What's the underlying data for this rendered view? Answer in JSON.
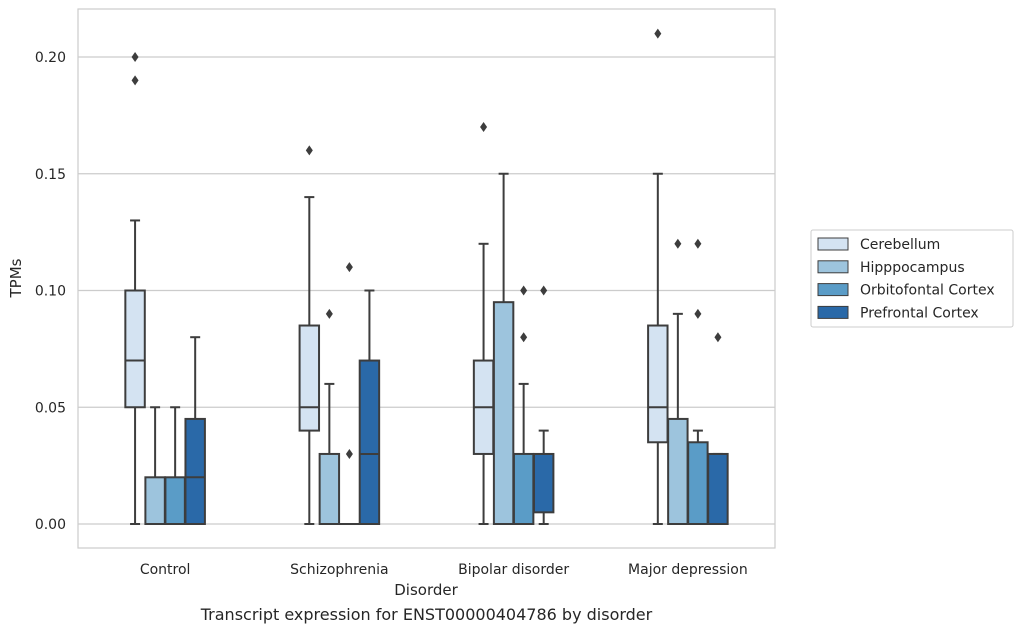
{
  "caption": "Transcript expression for ENST00000404786 by disorder",
  "chart_data": {
    "type": "box",
    "xlabel": "Disorder",
    "ylabel": "TPMs",
    "ylim": [
      -0.01,
      0.22
    ],
    "yticks": [
      "0.00",
      "0.05",
      "0.10",
      "0.15",
      "0.20"
    ],
    "ytick_values": [
      0,
      0.05,
      0.1,
      0.15,
      0.2
    ],
    "grid": "horizontal",
    "legend_position": "right",
    "categories": [
      "Control",
      "Schizophrenia",
      "Bipolar disorder",
      "Major depression"
    ],
    "series": [
      {
        "name": "Cerebellum",
        "color": "#d4e3f2",
        "boxes": [
          {
            "whislo": 0,
            "q1": 0.05,
            "med": 0.07,
            "q3": 0.1,
            "whishi": 0.13,
            "fliers": [
              0.19,
              0.2
            ]
          },
          {
            "whislo": 0,
            "q1": 0.04,
            "med": 0.05,
            "q3": 0.085,
            "whishi": 0.14,
            "fliers": [
              0.16
            ]
          },
          {
            "whislo": 0,
            "q1": 0.03,
            "med": 0.05,
            "q3": 0.07,
            "whishi": 0.12,
            "fliers": [
              0.17
            ]
          },
          {
            "whislo": 0,
            "q1": 0.035,
            "med": 0.05,
            "q3": 0.085,
            "whishi": 0.15,
            "fliers": [
              0.21
            ]
          }
        ]
      },
      {
        "name": "Hipppocampus",
        "color": "#9dc4dd",
        "boxes": [
          {
            "whislo": 0,
            "q1": 0,
            "med": 0,
            "q3": 0.02,
            "whishi": 0.05,
            "fliers": []
          },
          {
            "whislo": 0,
            "q1": 0,
            "med": 0,
            "q3": 0.03,
            "whishi": 0.06,
            "fliers": [
              0.09
            ]
          },
          {
            "whislo": 0,
            "q1": 0,
            "med": 0,
            "q3": 0.095,
            "whishi": 0.15,
            "fliers": []
          },
          {
            "whislo": 0,
            "q1": 0,
            "med": 0,
            "q3": 0.045,
            "whishi": 0.09,
            "fliers": [
              0.12
            ]
          }
        ]
      },
      {
        "name": "Orbitofontal Cortex",
        "color": "#5a9cc7",
        "boxes": [
          {
            "whislo": 0,
            "q1": 0,
            "med": 0,
            "q3": 0.02,
            "whishi": 0.05,
            "fliers": []
          },
          {
            "whislo": 0,
            "q1": 0,
            "med": 0,
            "q3": 0,
            "whishi": 0,
            "fliers": [
              0.03,
              0.11
            ]
          },
          {
            "whislo": 0,
            "q1": 0,
            "med": 0,
            "q3": 0.03,
            "whishi": 0.06,
            "fliers": [
              0.08,
              0.1
            ]
          },
          {
            "whislo": 0,
            "q1": 0,
            "med": 0,
            "q3": 0.035,
            "whishi": 0.04,
            "fliers": [
              0.09,
              0.12
            ]
          }
        ]
      },
      {
        "name": "Prefrontal Cortex",
        "color": "#2a69a8",
        "boxes": [
          {
            "whislo": 0,
            "q1": 0,
            "med": 0.02,
            "q3": 0.045,
            "whishi": 0.08,
            "fliers": []
          },
          {
            "whislo": 0,
            "q1": 0,
            "med": 0.03,
            "q3": 0.07,
            "whishi": 0.1,
            "fliers": []
          },
          {
            "whislo": 0,
            "q1": 0.005,
            "med": 0.03,
            "q3": 0.03,
            "whishi": 0.04,
            "fliers": [
              0.1
            ]
          },
          {
            "whislo": 0,
            "q1": 0,
            "med": 0,
            "q3": 0.03,
            "whishi": 0.03,
            "fliers": [
              0.08
            ]
          }
        ]
      }
    ]
  }
}
